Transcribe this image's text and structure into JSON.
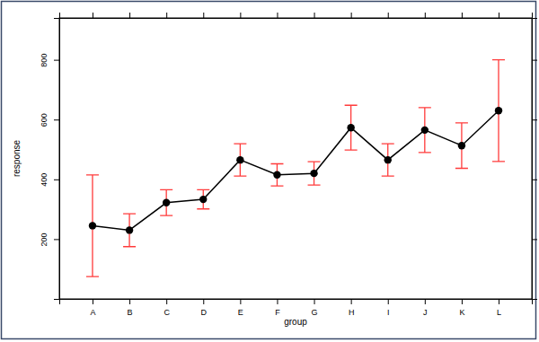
{
  "chart_data": {
    "type": "line",
    "x_label": "group",
    "y_label": "response",
    "categories": [
      "A",
      "B",
      "C",
      "D",
      "E",
      "F",
      "G",
      "H",
      "I",
      "J",
      "K",
      "L"
    ],
    "values": [
      245,
      230,
      322,
      333,
      465,
      415,
      420,
      573,
      465,
      565,
      513,
      630
    ],
    "errors": [
      170,
      55,
      43,
      32,
      54,
      37,
      39,
      75,
      54,
      75,
      76,
      170
    ],
    "color": "#000000",
    "marker": "circle",
    "ylim": [
      0,
      940
    ],
    "yticks": [
      200,
      400,
      600,
      800
    ]
  }
}
